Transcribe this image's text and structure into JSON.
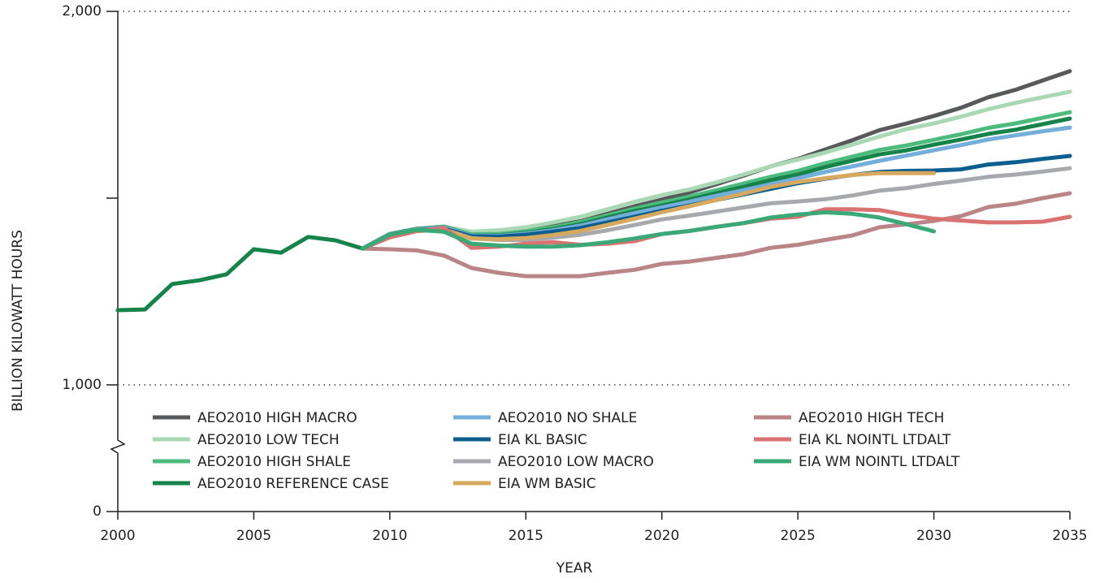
{
  "chart_data": {
    "type": "line",
    "x_label": "YEAR",
    "y_label": "BILLION KILOWATT HOURS",
    "x": [
      2000,
      2001,
      2002,
      2003,
      2004,
      2005,
      2006,
      2007,
      2008,
      2009,
      2010,
      2011,
      2012,
      2013,
      2014,
      2015,
      2016,
      2017,
      2018,
      2019,
      2020,
      2021,
      2022,
      2023,
      2024,
      2025,
      2026,
      2027,
      2028,
      2029,
      2030,
      2031,
      2032,
      2033,
      2034,
      2035
    ],
    "xlim": [
      2000,
      2035
    ],
    "xticks": [
      2000,
      2005,
      2010,
      2015,
      2020,
      2025,
      2030,
      2035
    ],
    "ylim": [
      0,
      2000
    ],
    "axis_break": [
      0,
      1000
    ],
    "yticks": [
      0,
      {
        "value": 1000,
        "label": "1,000"
      },
      {
        "value": 1500,
        "label": null
      },
      {
        "value": 2000,
        "label": "2,000"
      }
    ],
    "grid": "dotted",
    "series": [
      {
        "name": "AEO2010 HIGH MACRO",
        "color": "#58595b",
        "values": [
          null,
          null,
          null,
          null,
          null,
          null,
          null,
          null,
          null,
          1365,
          1404,
          1418,
          1424,
          1405,
          1407,
          1413,
          1425,
          1438,
          1458,
          1478,
          1496,
          1515,
          1537,
          1560,
          1585,
          1605,
          1630,
          1655,
          1682,
          1700,
          1720,
          1742,
          1770,
          1790,
          1815,
          1840
        ]
      },
      {
        "name": "AEO2010 LOW TECH",
        "color": "#a9d9b4",
        "values": [
          null,
          null,
          null,
          null,
          null,
          null,
          null,
          null,
          null,
          1365,
          1404,
          1418,
          1424,
          1410,
          1414,
          1422,
          1435,
          1450,
          1470,
          1490,
          1508,
          1523,
          1542,
          1563,
          1585,
          1603,
          1622,
          1643,
          1665,
          1685,
          1700,
          1718,
          1738,
          1755,
          1770,
          1785
        ]
      },
      {
        "name": "AEO2010 HIGH SHALE",
        "color": "#4dbb7c",
        "values": [
          null,
          null,
          null,
          null,
          null,
          null,
          null,
          null,
          null,
          1365,
          1404,
          1418,
          1423,
          1403,
          1404,
          1411,
          1422,
          1436,
          1454,
          1472,
          1488,
          1504,
          1521,
          1539,
          1557,
          1573,
          1593,
          1611,
          1629,
          1641,
          1656,
          1671,
          1688,
          1700,
          1715,
          1730
        ]
      },
      {
        "name": "AEO2010 REFERENCE CASE",
        "color": "#16834a",
        "values": [
          1200,
          1202,
          1270,
          1280,
          1296,
          1363,
          1354,
          1396,
          1387,
          1365,
          1404,
          1417,
          1422,
          1400,
          1400,
          1407,
          1417,
          1430,
          1448,
          1465,
          1480,
          1496,
          1513,
          1530,
          1548,
          1563,
          1583,
          1600,
          1617,
          1628,
          1643,
          1657,
          1672,
          1683,
          1698,
          1713
        ]
      },
      {
        "name": "AEO2010 NO SHALE",
        "color": "#74aedb",
        "values": [
          null,
          null,
          null,
          null,
          null,
          null,
          null,
          null,
          null,
          1365,
          1403,
          1416,
          1421,
          1400,
          1399,
          1405,
          1414,
          1426,
          1443,
          1460,
          1475,
          1490,
          1506,
          1521,
          1537,
          1553,
          1570,
          1585,
          1600,
          1614,
          1628,
          1642,
          1657,
          1668,
          1679,
          1689
        ]
      },
      {
        "name": "EIA KL BASIC",
        "color": "#0b5e8e",
        "values": [
          null,
          null,
          null,
          null,
          null,
          null,
          null,
          null,
          null,
          1365,
          1402,
          1414,
          1418,
          1398,
          1397,
          1402,
          1410,
          1420,
          1435,
          1450,
          1466,
          1480,
          1495,
          1510,
          1525,
          1540,
          1552,
          1562,
          1570,
          1573,
          1574,
          1577,
          1590,
          1596,
          1605,
          1613
        ]
      },
      {
        "name": "AEO2010 LOW MACRO",
        "color": "#a7a9ac",
        "values": [
          null,
          null,
          null,
          null,
          null,
          null,
          null,
          null,
          null,
          1365,
          1400,
          1412,
          1416,
          1393,
          1388,
          1388,
          1394,
          1402,
          1414,
          1428,
          1443,
          1453,
          1464,
          1475,
          1486,
          1491,
          1497,
          1507,
          1520,
          1527,
          1538,
          1547,
          1557,
          1563,
          1571,
          1580
        ]
      },
      {
        "name": "EIA WM BASIC",
        "color": "#d6a95e",
        "values": [
          null,
          null,
          null,
          null,
          null,
          null,
          null,
          null,
          null,
          1365,
          1401,
          1412,
          1415,
          1392,
          1390,
          1393,
          1401,
          1412,
          1428,
          1445,
          1462,
          1478,
          1495,
          1512,
          1530,
          1543,
          1553,
          1562,
          1567,
          1567,
          1567,
          null,
          null,
          null,
          null,
          null
        ]
      },
      {
        "name": "AEO2010 HIGH TECH",
        "color": "#b98586",
        "values": [
          null,
          null,
          null,
          null,
          null,
          null,
          null,
          null,
          null,
          1365,
          1363,
          1360,
          1346,
          1313,
          1300,
          1291,
          1291,
          1291,
          1300,
          1308,
          1324,
          1330,
          1340,
          1350,
          1367,
          1375,
          1388,
          1400,
          1422,
          1430,
          1439,
          1452,
          1476,
          1485,
          1500,
          1513
        ]
      },
      {
        "name": "EIA KL NOINTL LTDALT",
        "color": "#d97372",
        "values": [
          null,
          null,
          null,
          null,
          null,
          null,
          null,
          null,
          null,
          1365,
          1395,
          1412,
          1420,
          1367,
          1370,
          1378,
          1382,
          1375,
          1378,
          1385,
          1404,
          1412,
          1423,
          1433,
          1445,
          1450,
          1470,
          1470,
          1468,
          1455,
          1445,
          1440,
          1435,
          1435,
          1437,
          1450
        ]
      },
      {
        "name": "EIA WM NOINTL LTDALT",
        "color": "#3aa977",
        "values": [
          null,
          null,
          null,
          null,
          null,
          null,
          null,
          null,
          null,
          1365,
          1402,
          1415,
          1410,
          1378,
          1373,
          1370,
          1370,
          1374,
          1382,
          1392,
          1404,
          1412,
          1423,
          1433,
          1448,
          1456,
          1462,
          1458,
          1448,
          1430,
          1411,
          null,
          null,
          null,
          null,
          null
        ]
      }
    ]
  }
}
